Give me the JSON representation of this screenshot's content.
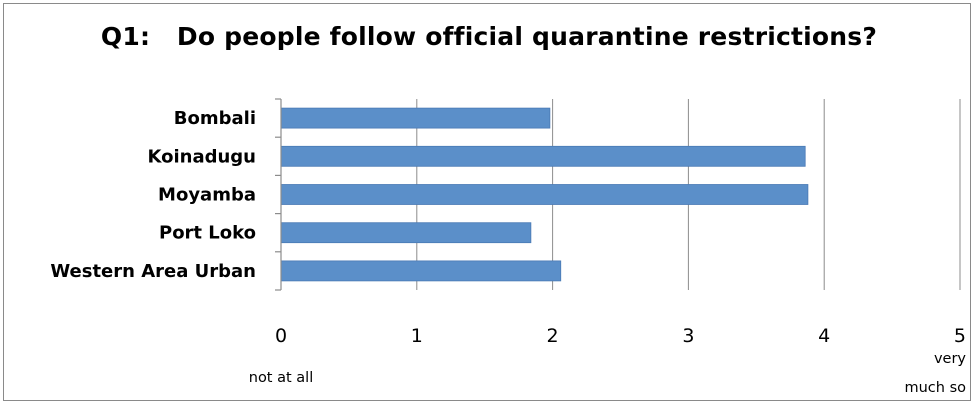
{
  "chart_data": {
    "type": "bar",
    "orientation": "horizontal",
    "title": "Q1:   Do people follow official quarantine restrictions?",
    "categories": [
      "Bombali",
      "Koinadugu",
      "Moyamba",
      "Port Loko",
      "Western Area Urban"
    ],
    "series": [
      {
        "values": [
          1.98,
          3.86,
          3.88,
          1.84,
          2.06
        ]
      }
    ],
    "xlim": [
      0,
      5
    ],
    "x_ticks": [
      "0",
      "1",
      "2",
      "3",
      "4",
      "5"
    ],
    "x_anchor_labels": {
      "low": "not at all",
      "high_line1": "very",
      "high_line2": "much so"
    },
    "grid": "vertical",
    "legend": "none",
    "colors": {
      "bar": "#5b8fc9",
      "bar_edge": "#4a7ab5",
      "grid": "#8c8c8c",
      "axis": "#8c8c8c"
    }
  }
}
